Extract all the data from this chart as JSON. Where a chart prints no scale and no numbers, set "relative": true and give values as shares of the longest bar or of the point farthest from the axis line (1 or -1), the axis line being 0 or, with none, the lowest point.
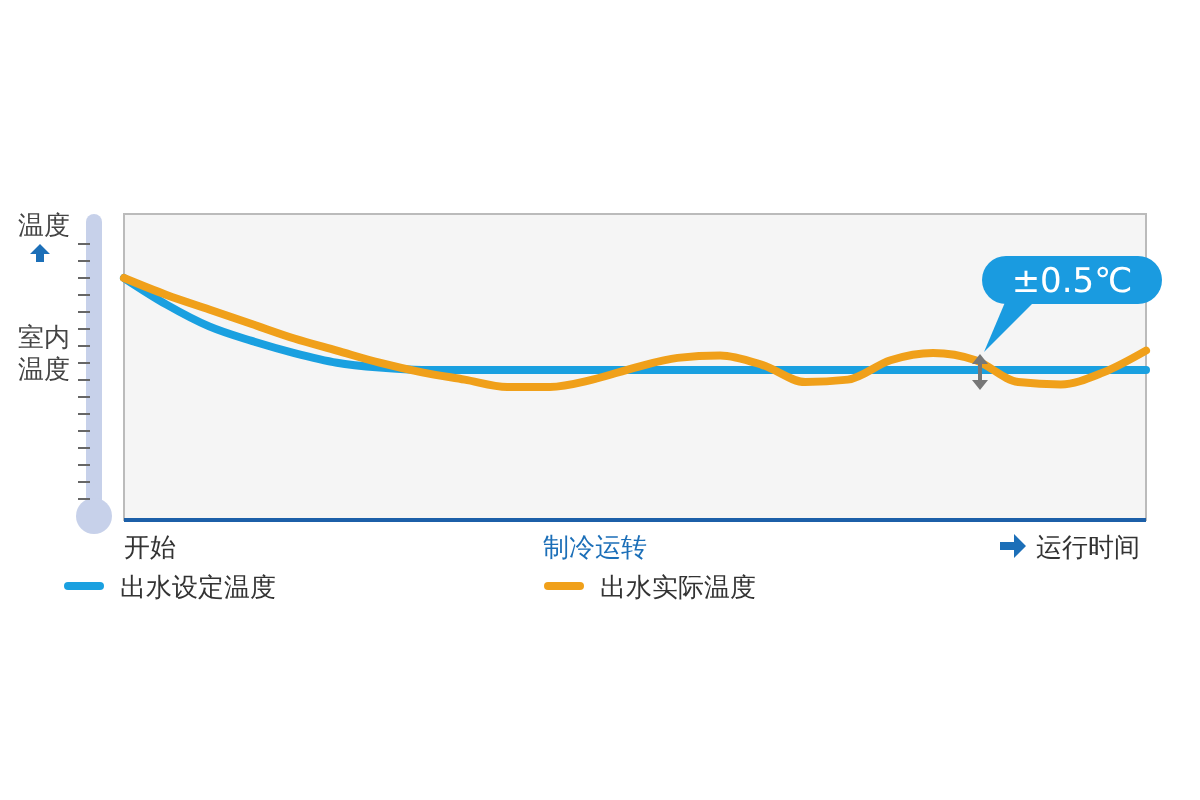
{
  "chart_data": {
    "type": "line",
    "relative": true,
    "ylabel": "温度",
    "xlabel": "制冷运转",
    "legend": "bottom",
    "marker": "none",
    "line_style": "solid",
    "annotations": [
      "室内温度",
      "开始",
      "运行时间",
      "±0.5℃"
    ],
    "categories": [
      null,
      null,
      null,
      null,
      null,
      null,
      null,
      null,
      null,
      null,
      null,
      null,
      null,
      null,
      null,
      null,
      null,
      null,
      null,
      null,
      null,
      null,
      null,
      null,
      null
    ],
    "series": [
      {
        "name": "出水设定温度",
        "color": "#1aa0e0",
        "values": [
          1.0,
          0.89,
          0.8,
          0.74,
          0.69,
          0.65,
          0.63,
          0.62,
          0.62,
          0.62,
          0.62,
          0.62,
          0.62,
          0.62,
          0.62,
          0.62,
          0.62,
          0.62,
          0.62,
          0.62,
          0.62,
          0.62,
          0.62,
          0.62,
          0.62
        ]
      },
      {
        "name": "出水实际温度",
        "color": "#f0a01a",
        "values": [
          1.0,
          0.93,
          0.87,
          0.81,
          0.75,
          0.7,
          0.65,
          0.61,
          0.58,
          0.55,
          0.55,
          0.58,
          0.63,
          0.67,
          0.68,
          0.64,
          0.57,
          0.58,
          0.66,
          0.69,
          0.66,
          0.57,
          0.56,
          0.61,
          0.7
        ]
      }
    ]
  }
}
